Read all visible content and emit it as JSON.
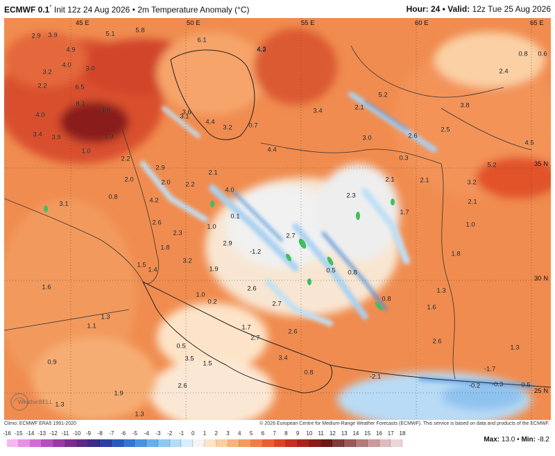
{
  "title": {
    "model": "ECMWF 0.1",
    "degree": "°",
    "init": "Init 12z 24 Aug 2026",
    "separator": "•",
    "variable": "2m Temperature Anomaly (°C)",
    "hour_label": "Hour:",
    "hour": "24",
    "valid_label": "Valid:",
    "valid": "12z Tue 25 Aug 2026"
  },
  "coordinates": {
    "lon_top": [
      "45 E",
      "50 E",
      "55 E",
      "60 E",
      "65 E"
    ],
    "lat_right": [
      "35 N",
      "30 N",
      "25 N"
    ]
  },
  "map_values": [
    "2.9",
    "3.9",
    "4.9",
    "5.1",
    "5.8",
    "6.1",
    "2.2",
    "3.0",
    "4.0",
    "4.3",
    "3.1",
    "6.5",
    "8.1",
    "3.9",
    "4.0",
    "3.4",
    "3.9",
    "1.3",
    "1.0",
    "2.2",
    "2.9",
    "2.0",
    "0.8",
    "2.0",
    "2.2",
    "4.2",
    "2.6",
    "3.1",
    "1.8",
    "2.3",
    "3.2",
    "1.5",
    "1.4",
    "1.9",
    "1.6",
    "1.3",
    "1.1",
    "0.9",
    "1.3",
    "1.9",
    "1.3",
    "0.5",
    "3.5",
    "1.5",
    "2.6",
    "3.6",
    "4.4",
    "3.2",
    "0.7",
    "3.4",
    "2.1",
    "5.2",
    "3.8",
    "4.4",
    "3.0",
    "2.6",
    "2.5",
    "4.5",
    "0.3",
    "2.1",
    "4.0",
    "0.1",
    "1.0",
    "2.7",
    "2.9",
    "-1.2",
    "2.3",
    "1.7",
    "0.5",
    "0.8",
    "0.8",
    "2.6",
    "2.7",
    "1.7",
    "2.7",
    "2.6",
    "3.4",
    "0.8",
    "1.0",
    "0.2",
    "-2.1",
    "1.8",
    "1.3",
    "2.6",
    "1.3",
    "-1.7",
    "-0.2",
    "0.5",
    "5.2",
    "3.2",
    "2.1",
    "1.0",
    "0.8",
    "2.4",
    "4.3",
    "3.2",
    "-0.3",
    "0.6",
    "2.1",
    "2.1",
    "1.6"
  ],
  "watermark": "WeatherBELL",
  "footer": {
    "left": "Climo: ECMWF ERA5 1991-2020",
    "right": "© 2026 European Centre for Medium-Range Weather Forecasts (ECMWF). This service is based on data and products of the ECMWF."
  },
  "colorbar": {
    "ticks": [
      "-16",
      "-15",
      "-14",
      "-13",
      "-12",
      "-11",
      "-10",
      "-9",
      "-8",
      "-7",
      "-6",
      "-5",
      "-4",
      "-3",
      "-2",
      "-1",
      "0",
      "1",
      "2",
      "3",
      "4",
      "5",
      "6",
      "7",
      "8",
      "9",
      "10",
      "11",
      "12",
      "13",
      "14",
      "15",
      "16",
      "17",
      "18"
    ],
    "colors": [
      "#f7b7f2",
      "#e98fe6",
      "#d56ad6",
      "#b84ec0",
      "#9a3aa6",
      "#7b2d8e",
      "#5a2a84",
      "#3d2b8a",
      "#2f3da6",
      "#2c57c0",
      "#3574d6",
      "#4a92e3",
      "#66aeee",
      "#8cc8f3",
      "#b3dcf7",
      "#d9edfb",
      "#f4f4f4",
      "#fde3c8",
      "#fbcf9f",
      "#f8b47a",
      "#f59a5c",
      "#f07e44",
      "#e86032",
      "#d94427",
      "#c42f20",
      "#a8231c",
      "#8b1c1a",
      "#6e1717",
      "#7f3b3b",
      "#99595a",
      "#b47b7c",
      "#c99a9c",
      "#dcbbbc",
      "#ebd6d7"
    ]
  },
  "stats": {
    "max_label": "Max:",
    "max": "13.0",
    "min_label": "Min:",
    "min": "-8.2"
  }
}
